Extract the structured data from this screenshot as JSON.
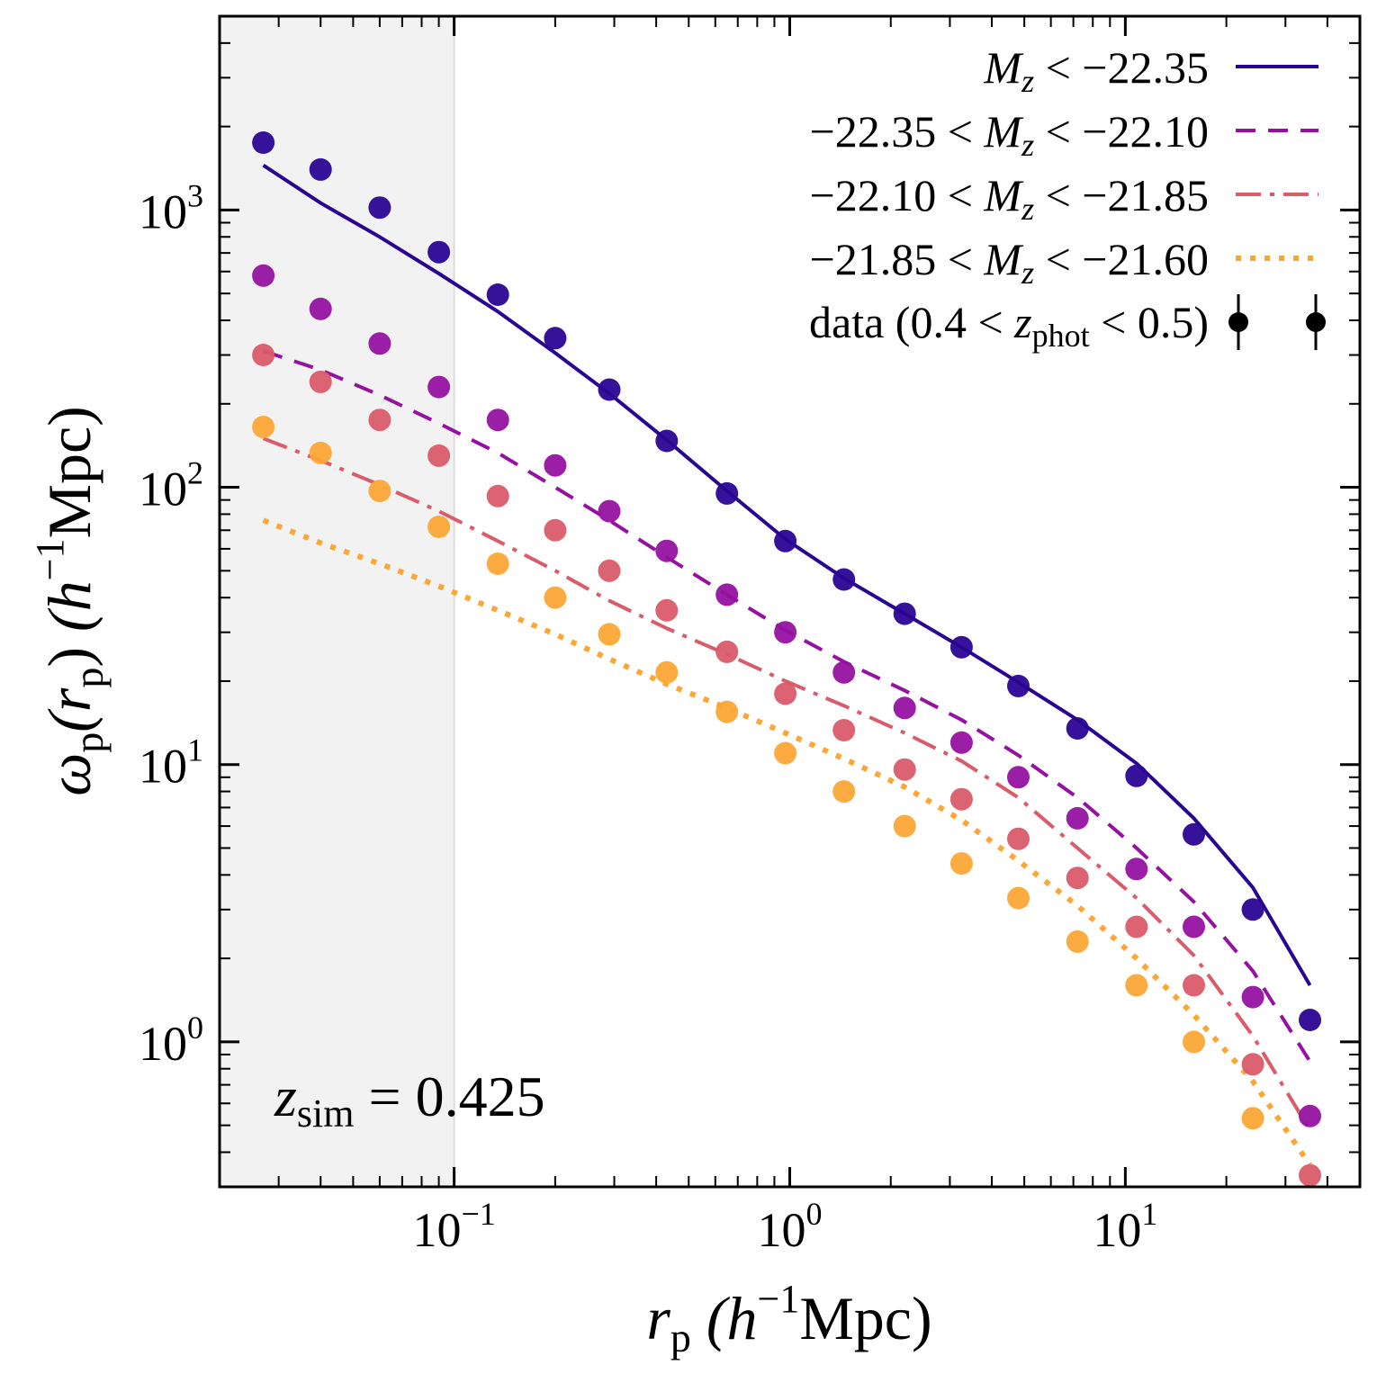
{
  "chart_data": {
    "type": "scatter",
    "xscale": "log",
    "yscale": "log",
    "xlim": [
      0.02,
      50
    ],
    "ylim": [
      0.3,
      5000
    ],
    "x_ticks": [
      {
        "value": 0.1,
        "base": "10",
        "exp": "−1"
      },
      {
        "value": 1,
        "base": "10",
        "exp": "0"
      },
      {
        "value": 10,
        "base": "10",
        "exp": "1"
      }
    ],
    "y_ticks": [
      {
        "value": 1,
        "base": "10",
        "exp": "0"
      },
      {
        "value": 10,
        "base": "10",
        "exp": "1"
      },
      {
        "value": 100,
        "base": "10",
        "exp": "2"
      },
      {
        "value": 1000,
        "base": "10",
        "exp": "3"
      }
    ],
    "xlabel": {
      "main": "r",
      "sub": "p",
      "unit_pre": "(h",
      "unit_exp": "−1",
      "unit_post": "Mpc)"
    },
    "ylabel": {
      "main": "ω",
      "sub": "p",
      "arg_open": "(r",
      "arg_sub": "p",
      "arg_close": ")",
      "unit_pre": "(h",
      "unit_exp": "−1",
      "unit_post": "Mpc)"
    },
    "shaded_region": {
      "xmin": 0.02,
      "xmax": 0.1,
      "color": "#f2f2f2"
    },
    "annotation": {
      "var": "z",
      "sub": "sim",
      "rest": " = 0.425"
    },
    "x": [
      0.027,
      0.04,
      0.06,
      0.09,
      0.135,
      0.2,
      0.29,
      0.43,
      0.65,
      0.97,
      1.45,
      2.2,
      3.25,
      4.8,
      7.2,
      10.8,
      16,
      24,
      35.5
    ],
    "series": [
      {
        "legend": "M_z < −22.35",
        "color": "#2a0593",
        "dash": "",
        "model": [
          1450,
          1060,
          800,
          590,
          430,
          305,
          218,
          148,
          97,
          65,
          47,
          35,
          26.5,
          19.8,
          14.5,
          10.1,
          6.4,
          3.6,
          1.6
        ],
        "points": [
          1750,
          1400,
          1020,
          705,
          495,
          345,
          225,
          147,
          95,
          64,
          46.5,
          35,
          26.5,
          19.2,
          13.5,
          9.1,
          5.6,
          3.0,
          1.2
        ]
      },
      {
        "legend": "−22.35 < M_z < −22.10",
        "color": "#9512a1",
        "dash": "22,14",
        "model": [
          310,
          265,
          215,
          170,
          133,
          100,
          76,
          56,
          41,
          30.5,
          23.5,
          18.5,
          14.5,
          10.8,
          7.6,
          5.0,
          3.2,
          1.8,
          0.85
        ],
        "points": [
          580,
          440,
          330,
          230,
          175,
          120,
          82,
          59,
          41,
          30,
          21.5,
          16,
          12,
          9,
          6.4,
          4.2,
          2.6,
          1.45,
          0.54
        ]
      },
      {
        "legend": "−22.10 < M_z < −21.85",
        "color": "#da5b69",
        "dash": "28,10,5,10",
        "model": [
          150,
          125,
          102,
          82,
          64,
          50,
          39,
          31,
          25,
          20,
          16.3,
          13,
          10.3,
          7.6,
          5.0,
          3.3,
          2.05,
          1.05,
          0.48
        ],
        "points": [
          300,
          240,
          175,
          130,
          93,
          70,
          50,
          36,
          25.5,
          18,
          13.3,
          9.6,
          7.5,
          5.4,
          3.9,
          2.6,
          1.6,
          0.83,
          0.33
        ]
      },
      {
        "legend": "−21.85 < M_z < −21.60",
        "color": "#fca636",
        "dash": "6,10",
        "model": [
          76,
          63,
          53,
          44,
          36,
          29.5,
          24,
          19.5,
          16,
          13,
          10.5,
          8.3,
          6.3,
          4.5,
          3.1,
          2.0,
          1.25,
          0.72,
          0.36
        ],
        "points": [
          165,
          133,
          97,
          72,
          53,
          40,
          29.5,
          21.5,
          15.5,
          11,
          8,
          6,
          4.4,
          3.3,
          2.3,
          1.6,
          1.0,
          0.53,
          null
        ]
      }
    ],
    "data_legend": {
      "pre": "data (0.4 < ",
      "var": "z",
      "sub": "phot",
      "post": " < 0.5)"
    }
  }
}
